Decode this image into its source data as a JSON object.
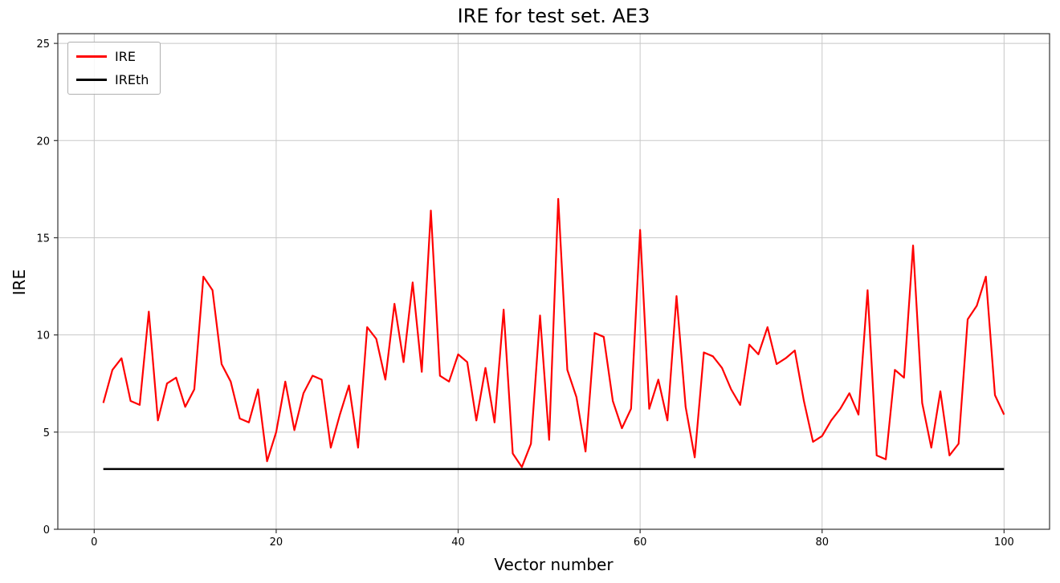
{
  "chart_data": {
    "type": "line",
    "title": "IRE for test set. AE3",
    "xlabel": "Vector number",
    "ylabel": "IRE",
    "xlim": [
      -4,
      105
    ],
    "ylim": [
      0,
      25.5
    ],
    "xticks": [
      0,
      20,
      40,
      60,
      80,
      100
    ],
    "yticks": [
      0,
      5,
      10,
      15,
      20,
      25
    ],
    "grid": true,
    "legend": {
      "position": "upper left",
      "entries": [
        "IRE",
        "IREth"
      ]
    },
    "series": [
      {
        "name": "IRE",
        "color": "#ff0000",
        "x_start": 1,
        "values": [
          6.5,
          8.2,
          8.8,
          6.6,
          6.4,
          11.2,
          5.6,
          7.5,
          7.8,
          6.3,
          7.2,
          13.0,
          12.3,
          8.5,
          7.6,
          5.7,
          5.5,
          7.2,
          3.5,
          5.0,
          7.6,
          5.1,
          7.0,
          7.9,
          7.7,
          4.2,
          5.9,
          7.4,
          4.2,
          10.4,
          9.8,
          7.7,
          11.6,
          8.6,
          12.7,
          8.1,
          16.4,
          7.9,
          7.6,
          9.0,
          8.6,
          5.6,
          8.3,
          5.5,
          11.3,
          3.9,
          3.2,
          4.4,
          11.0,
          4.6,
          17.0,
          8.2,
          6.8,
          4.0,
          10.1,
          9.9,
          6.6,
          5.2,
          6.2,
          15.4,
          6.2,
          7.7,
          5.6,
          12.0,
          6.3,
          3.7,
          9.1,
          8.9,
          8.3,
          7.2,
          6.4,
          9.5,
          9.0,
          10.4,
          8.5,
          8.8,
          9.2,
          6.6,
          4.5,
          4.8,
          5.6,
          6.2,
          7.0,
          5.9,
          12.3,
          3.8,
          3.6,
          8.2,
          7.8,
          14.6,
          6.5,
          4.2,
          7.1,
          3.8,
          4.4,
          10.8,
          11.5,
          13.0,
          6.9,
          5.9
        ]
      },
      {
        "name": "IREth",
        "type": "hline",
        "color": "#000000",
        "value": 3.1,
        "x_range": [
          1,
          100
        ]
      }
    ]
  }
}
